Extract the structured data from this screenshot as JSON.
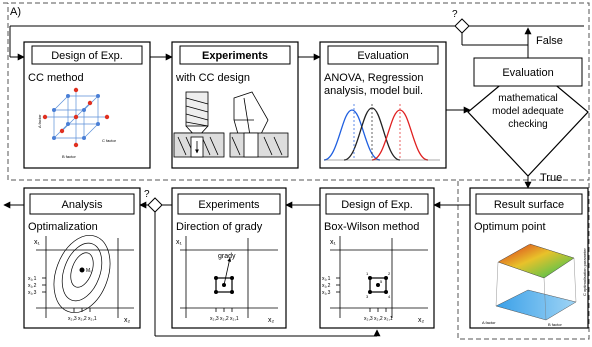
{
  "panel_label": "A)",
  "decision_top": {
    "mark": "?",
    "false_label": "False"
  },
  "decision_mid": {
    "mark": "?"
  },
  "cc_box": {
    "title": "Design of Exp.",
    "subtitle": "CC method",
    "axis_labels": [
      "A factor",
      "B factor",
      "C factor"
    ]
  },
  "exp_box": {
    "title": "Experiments",
    "subtitle": "with CC design"
  },
  "eval_box": {
    "title": "Evaluation",
    "subtitle_lines": [
      "ANOVA, Regression",
      "analysis, model buil."
    ]
  },
  "decision_box": {
    "title": "Evaluation",
    "text_lines": [
      "mathematical",
      "model adequate",
      "checking"
    ],
    "true_label": "True"
  },
  "surface_box": {
    "title": "Result surface",
    "subtitle": "Optimum point",
    "axis_labels": [
      "A factor",
      "B factor",
      "C optimalisation parameter"
    ]
  },
  "bw_box": {
    "title": "Design of Exp.",
    "subtitle": "Box-Wilson method",
    "y_label": "x₁",
    "x_label": "x₂",
    "y_ticks": [
      "x₁,1",
      "x₁,2",
      "x₁,3"
    ],
    "x_ticks": [
      "x₂,3",
      "x₂,2",
      "x₂,1"
    ],
    "point_labels": [
      "1",
      "2",
      "3",
      "4",
      "5"
    ]
  },
  "grady_box": {
    "title": "Experiments",
    "subtitle": "Direction of grady",
    "y_label": "x₁",
    "x_label": "x₂",
    "arrow_label": "grady",
    "x_ticks": [
      "x₂,3",
      "x₂,2",
      "x₂,1"
    ]
  },
  "analysis_box": {
    "title": "Analysis",
    "subtitle": "Optimalization",
    "y_label": "x₁",
    "x_label": "x₂",
    "y_ticks": [
      "x₁,1",
      "x₁,2",
      "x₁,3"
    ],
    "x_ticks": [
      "x₂,3",
      "x₂,2",
      "x₂,1"
    ],
    "optimum_label": "M₀"
  }
}
